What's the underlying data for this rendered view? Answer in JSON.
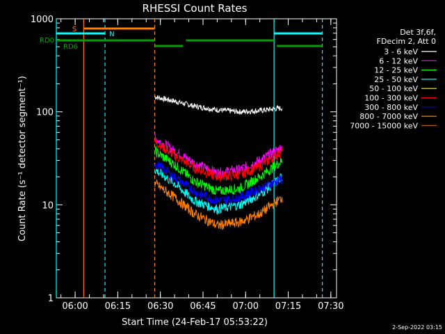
{
  "chart_data": {
    "type": "line",
    "title": "RHESSI Count Rates",
    "xlabel": "Start Time (24-Feb-17 05:53:22)",
    "ylabel": "Count Rate (s⁻¹ detector segment⁻¹)",
    "yscale": "log",
    "ylim": [
      1,
      1000
    ],
    "xlim": [
      "05:53:22",
      "07:32:00"
    ],
    "x_ticks": [
      "06:00",
      "06:15",
      "06:30",
      "06:45",
      "07:00",
      "07:15",
      "07:30"
    ],
    "y_ticks": [
      "1",
      "10",
      "100",
      "1000"
    ],
    "grid": false,
    "legend_position": "top-right",
    "legend_header": [
      "Det 3f,6f,",
      "FDecim 2, Att 0"
    ],
    "footer_date": "2-Sep-2022 03:15",
    "series": [
      {
        "name": "3 - 6 keV",
        "color": "#ffffff",
        "t": [
          "06:28",
          "06:35",
          "06:42",
          "06:50",
          "06:58",
          "07:05",
          "07:13"
        ],
        "values": [
          145,
          130,
          115,
          105,
          100,
          103,
          110
        ]
      },
      {
        "name": "6 - 12 keV",
        "color": "#ff00ff",
        "t": [
          "06:28",
          "06:35",
          "06:42",
          "06:50",
          "06:58",
          "07:05",
          "07:13"
        ],
        "values": [
          52,
          38,
          28,
          22,
          24,
          30,
          42
        ]
      },
      {
        "name": "12 - 25 keV",
        "color": "#00ff00",
        "t": [
          "06:28",
          "06:35",
          "06:42",
          "06:50",
          "06:58",
          "07:05",
          "07:13"
        ],
        "values": [
          38,
          27,
          18,
          14,
          15,
          20,
          30
        ]
      },
      {
        "name": "25 - 50 keV",
        "color": "#00ffff",
        "t": [
          "06:28",
          "06:35",
          "06:42",
          "06:50",
          "06:58",
          "07:05",
          "07:13"
        ],
        "values": [
          24,
          17,
          11,
          9,
          10,
          13,
          20
        ]
      },
      {
        "name": "50 - 100 keV",
        "color": "#ffff00",
        "t": [],
        "values": []
      },
      {
        "name": "100 - 300 keV",
        "color": "#ff0000",
        "t": [
          "06:28",
          "06:35",
          "06:42",
          "06:50",
          "06:58",
          "07:05",
          "07:13"
        ],
        "values": [
          48,
          34,
          25,
          20,
          21,
          26,
          38
        ]
      },
      {
        "name": "300 - 800 keV",
        "color": "#0000ff",
        "t": [
          "06:28",
          "06:35",
          "06:42",
          "06:50",
          "06:58",
          "07:05",
          "07:13"
        ],
        "values": [
          28,
          20,
          14,
          11,
          12,
          15,
          19
        ]
      },
      {
        "name": "800 - 7000 keV",
        "color": "#ff8000",
        "t": [
          "06:28",
          "06:35",
          "06:42",
          "06:50",
          "06:58",
          "07:05",
          "07:13"
        ],
        "values": [
          17,
          12,
          8,
          6,
          6.5,
          8,
          12
        ]
      },
      {
        "name": "7000 - 15000 keV",
        "color": "#b06000",
        "t": [],
        "values": []
      }
    ],
    "annotations": {
      "labels": [
        {
          "text": "S",
          "color": "#ff8000"
        },
        {
          "text": "N",
          "color": "#00ffff"
        },
        {
          "text": "RD0",
          "color": "#00a000"
        },
        {
          "text": "RD6",
          "color": "#00a000"
        }
      ],
      "flag_bars": [
        {
          "flag": "S",
          "color": "#ff8000",
          "t_start": "06:03",
          "t_end": "06:28"
        },
        {
          "flag": "N",
          "color": "#00ffff",
          "t_start": "05:53:22",
          "t_end": "06:10:30"
        },
        {
          "flag": "N",
          "color": "#00ffff",
          "t_start": "07:10",
          "t_end": "07:27"
        },
        {
          "flag": "RD0",
          "color": "#00a000",
          "t_start": "05:53:22",
          "t_end": "06:28"
        },
        {
          "flag": "RD0",
          "color": "#00a000",
          "t_start": "06:39",
          "t_end": "07:10"
        },
        {
          "flag": "RD6",
          "color": "#00a000",
          "t_start": "06:28",
          "t_end": "06:38"
        },
        {
          "flag": "RD6",
          "color": "#00a000",
          "t_start": "07:11",
          "t_end": "07:27"
        }
      ],
      "vlines": [
        {
          "t": "05:53:22",
          "color": "#00ffff",
          "dashed": false
        },
        {
          "t": "06:03",
          "color": "#ff8000",
          "dashed": false
        },
        {
          "t": "06:10:30",
          "color": "#00ffff",
          "dashed": true
        },
        {
          "t": "06:28",
          "color": "#ff8000",
          "dashed": true
        },
        {
          "t": "07:10",
          "color": "#00ffff",
          "dashed": false
        },
        {
          "t": "07:27",
          "color": "#00ffff",
          "dashed": true
        }
      ]
    }
  }
}
